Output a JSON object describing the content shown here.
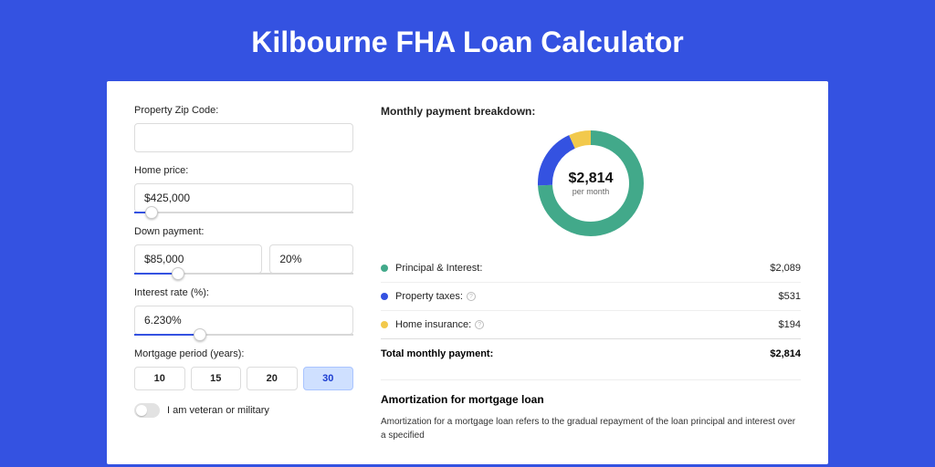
{
  "colors": {
    "page_bg": "#3452e1",
    "panel_bg": "#ffffff",
    "accent": "#3452e1",
    "series_principal": "#42a98a",
    "series_tax": "#3452e1",
    "series_insurance": "#f2c94c"
  },
  "title": "Kilbourne FHA Loan Calculator",
  "form": {
    "zip_label": "Property Zip Code:",
    "zip_value": "",
    "price_label": "Home price:",
    "price_value": "$425,000",
    "price_slider_pct": 8,
    "down_label": "Down payment:",
    "down_amount": "$85,000",
    "down_pct": "20%",
    "down_slider_pct": 20,
    "rate_label": "Interest rate (%):",
    "rate_value": "6.230%",
    "rate_slider_pct": 30,
    "period_label": "Mortgage period (years):",
    "periods": [
      "10",
      "15",
      "20",
      "30"
    ],
    "period_selected_index": 3,
    "veteran_label": "I am veteran or military",
    "veteran_on": false
  },
  "breakdown": {
    "title": "Monthly payment breakdown:",
    "center_amount": "$2,814",
    "center_sub": "per month",
    "donut": {
      "segments": [
        {
          "key": "principal",
          "pct": 74.2,
          "color": "#42a98a"
        },
        {
          "key": "tax",
          "pct": 18.9,
          "color": "#3452e1"
        },
        {
          "key": "insurance",
          "pct": 6.9,
          "color": "#f2c94c"
        }
      ],
      "thickness": 16
    },
    "items": [
      {
        "label": "Principal & Interest:",
        "value": "$2,089",
        "dot": "#42a98a",
        "info": false
      },
      {
        "label": "Property taxes:",
        "value": "$531",
        "dot": "#3452e1",
        "info": true
      },
      {
        "label": "Home insurance:",
        "value": "$194",
        "dot": "#f2c94c",
        "info": true
      }
    ],
    "total_label": "Total monthly payment:",
    "total_value": "$2,814"
  },
  "amortization": {
    "title": "Amortization for mortgage loan",
    "text": "Amortization for a mortgage loan refers to the gradual repayment of the loan principal and interest over a specified"
  }
}
